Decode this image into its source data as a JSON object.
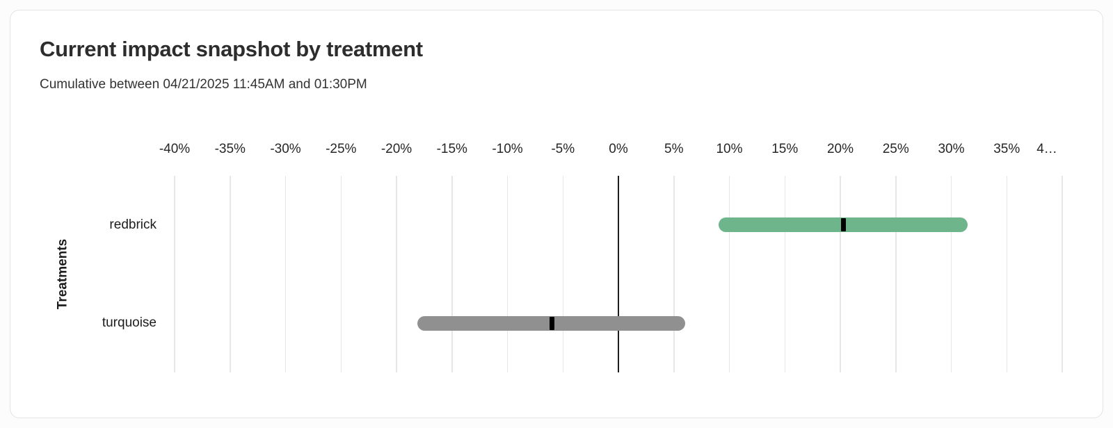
{
  "card": {
    "title": "Current impact snapshot by treatment",
    "subtitle": "Cumulative between 04/21/2025 11:45AM and 01:30PM"
  },
  "chart_data": {
    "type": "bar",
    "orientation": "horizontal",
    "title": "Current impact snapshot by treatment",
    "subtitle": "Cumulative between 04/21/2025 11:45AM and 01:30PM",
    "ylabel": "Treatments",
    "xlabel": "",
    "unit": "%",
    "categories": [
      "redbrick",
      "turquoise"
    ],
    "series": [
      {
        "name": "redbrick",
        "low": 9,
        "high": 31.5,
        "estimate": 20.3,
        "color": "#6fb58b"
      },
      {
        "name": "turquoise",
        "low": -18.1,
        "high": 6,
        "estimate": -6,
        "color": "#909090"
      }
    ],
    "xlim": [
      -40,
      40
    ],
    "x_ticks": [
      -40,
      -35,
      -30,
      -25,
      -20,
      -15,
      -10,
      -5,
      0,
      5,
      10,
      15,
      20,
      25,
      30,
      35,
      40
    ],
    "x_tick_labels": [
      "-40%",
      "-35%",
      "-30%",
      "-25%",
      "-20%",
      "-15%",
      "-10%",
      "-5%",
      "0%",
      "5%",
      "10%",
      "15%",
      "20%",
      "25%",
      "30%",
      "35%",
      "4…"
    ],
    "grid": true,
    "legend": "none",
    "zero_line": true,
    "colors": {
      "grid": "#e7e7e7",
      "zero_line": "#1c1c1c",
      "marker": "#000000",
      "title_text": "#2d2d2d",
      "axis_text": "#262626"
    }
  }
}
